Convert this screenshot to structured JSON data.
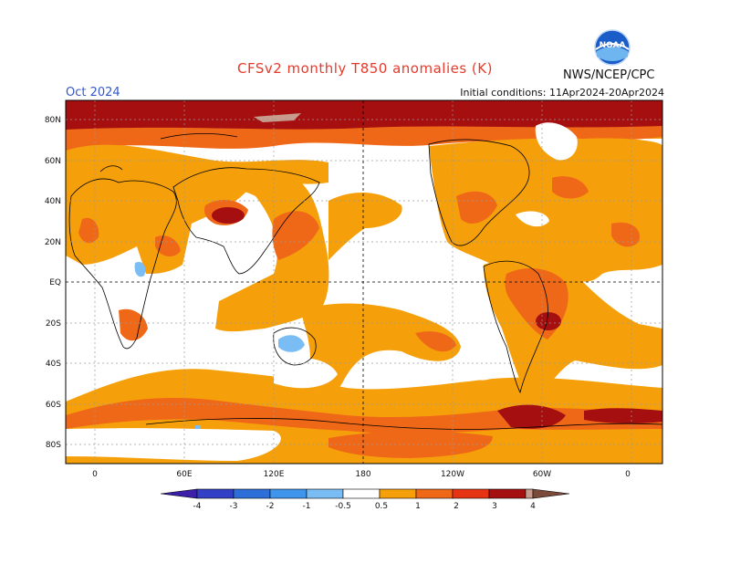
{
  "header": {
    "title": "CFSv2 monthly T850 anomalies (K)",
    "month": "Oct 2024",
    "initial_conditions": "Initial conditions: 11Apr2024-20Apr2024",
    "agency": "NWS/NCEP/CPC",
    "logo_text": "NOAA"
  },
  "axes": {
    "lat_labels": [
      "80N",
      "60N",
      "40N",
      "20N",
      "EQ",
      "20S",
      "40S",
      "60S",
      "80S"
    ],
    "lon_labels": [
      "0",
      "60E",
      "120E",
      "180",
      "120W",
      "60W",
      "0"
    ]
  },
  "colorbar": {
    "labels": [
      "-4",
      "-3",
      "-2",
      "-1",
      "-0.5",
      "0.5",
      "1",
      "2",
      "3",
      "4"
    ],
    "colors": {
      "neg4": "#3b1fa8",
      "neg3": "#3340c6",
      "neg2": "#2d6ed8",
      "neg1": "#3f95ec",
      "neg05": "#79bdf4",
      "neutral": "#ffffff",
      "pos05": "#f5a00a",
      "pos1": "#ef6818",
      "pos2": "#e63312",
      "pos3": "#a50f0f",
      "pos4": "#c89b8c",
      "pos4plus": "#7a4a3a"
    }
  }
}
